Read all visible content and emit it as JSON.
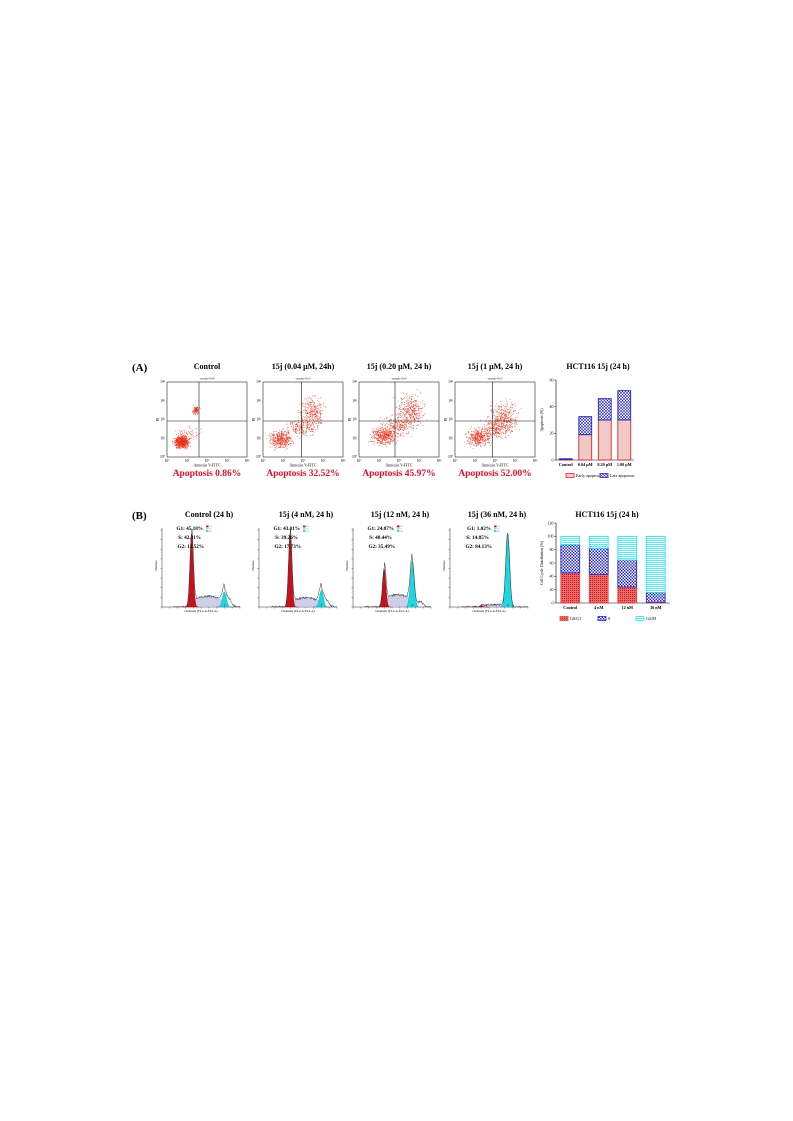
{
  "panel_labels": [
    "(A)",
    "(B)"
  ],
  "colors": {
    "dots": "#e8341c",
    "apoptosis_red": "#e0102a",
    "early_fill": "#f2c9c9",
    "early_edge": "#e52222",
    "late_fill": "#c8cbe8",
    "late_edge": "#2323b8",
    "g1_fill": "#c8101e",
    "s_fill": "#c9c9e6",
    "g2_fill": "#1ed8e0",
    "bar_g1": "#e84545",
    "bar_s": "#2a2ad0",
    "bar_g2": "#32e4ec"
  },
  "section_a": {
    "titles": [
      "Control",
      "15j (0.04 μM, 24h)",
      "15j (0.20 μM, 24 h)",
      "15j (1 μM, 24 h)"
    ],
    "sample_ids": [
      "sample-008",
      "sample-003",
      "sample-004",
      "sample-005"
    ],
    "x_axis_label": "Annexin V-FITC",
    "y_axis_label": "PI",
    "log_ticks": [
      "10⁰",
      "10¹",
      "10²",
      "10³",
      "10⁴"
    ],
    "apoptosis_labels": [
      "Apoptosis 0.86%",
      "Apoptosis 32.52%",
      "Apoptosis 45.97%",
      "Apoptosis 52.00%"
    ]
  },
  "section_b": {
    "titles": [
      "Control (24 h)",
      "15j (4 nM, 24 h)",
      "15j (12 nM, 24 h)",
      "15j (36 nM, 24 h)"
    ],
    "phase_labels": [
      {
        "g1": "G1: 45.18%",
        "s": "S: 42.31%",
        "g2": "G2: 12.52%"
      },
      {
        "g1": "G1: 43.01%",
        "s": "S: 39.26%",
        "g2": "G2: 17.73%"
      },
      {
        "g1": "G1: 24.07%",
        "s": "S: 40.44%",
        "g2": "G2: 35.49%"
      },
      {
        "g1": "G1: 1.02%",
        "s": "S: 14.85%",
        "g2": "G2: 84.13%"
      }
    ],
    "x_axis_label": "Channels (FL2-A-FL2-A)",
    "y_axis_label": "Number",
    "mini_legend": [
      "G1",
      "S",
      "G2"
    ],
    "peak_marks": [
      "1",
      "2"
    ]
  },
  "chart_data": [
    {
      "type": "bar",
      "title": "HCT116 15j (24 h)",
      "ylabel": "Apoptosis (%)",
      "xlabel": "",
      "categories": [
        "Control",
        "0.04 μM",
        "0.20 μM",
        "1.00 μM"
      ],
      "ylim": [
        0,
        60
      ],
      "yticks": [
        "0",
        "20",
        "40",
        "60"
      ],
      "stacked": true,
      "series": [
        {
          "name": "Early apoptosis",
          "values": [
            0.4,
            19,
            30,
            30
          ]
        },
        {
          "name": "Late apoptosis",
          "values": [
            0.5,
            13.5,
            16,
            22
          ]
        }
      ],
      "legend": "bottom"
    },
    {
      "type": "bar",
      "title": "HCT116 15j (24 h)",
      "ylabel": "Cell Cycle Distribution (%)",
      "xlabel": "",
      "categories": [
        "Control",
        "4 nM",
        "12 nM",
        "36 nM"
      ],
      "ylim": [
        0,
        120
      ],
      "yticks": [
        "0",
        "20",
        "40",
        "60",
        "80",
        "100",
        "120"
      ],
      "stacked": true,
      "series": [
        {
          "name": "G0/G1",
          "values": [
            45.18,
            43.01,
            24.07,
            1.02
          ]
        },
        {
          "name": "S",
          "values": [
            42.31,
            39.26,
            40.44,
            14.85
          ]
        },
        {
          "name": "G2/M",
          "values": [
            12.52,
            17.73,
            35.49,
            84.13
          ]
        }
      ],
      "legend": "bottom"
    }
  ]
}
